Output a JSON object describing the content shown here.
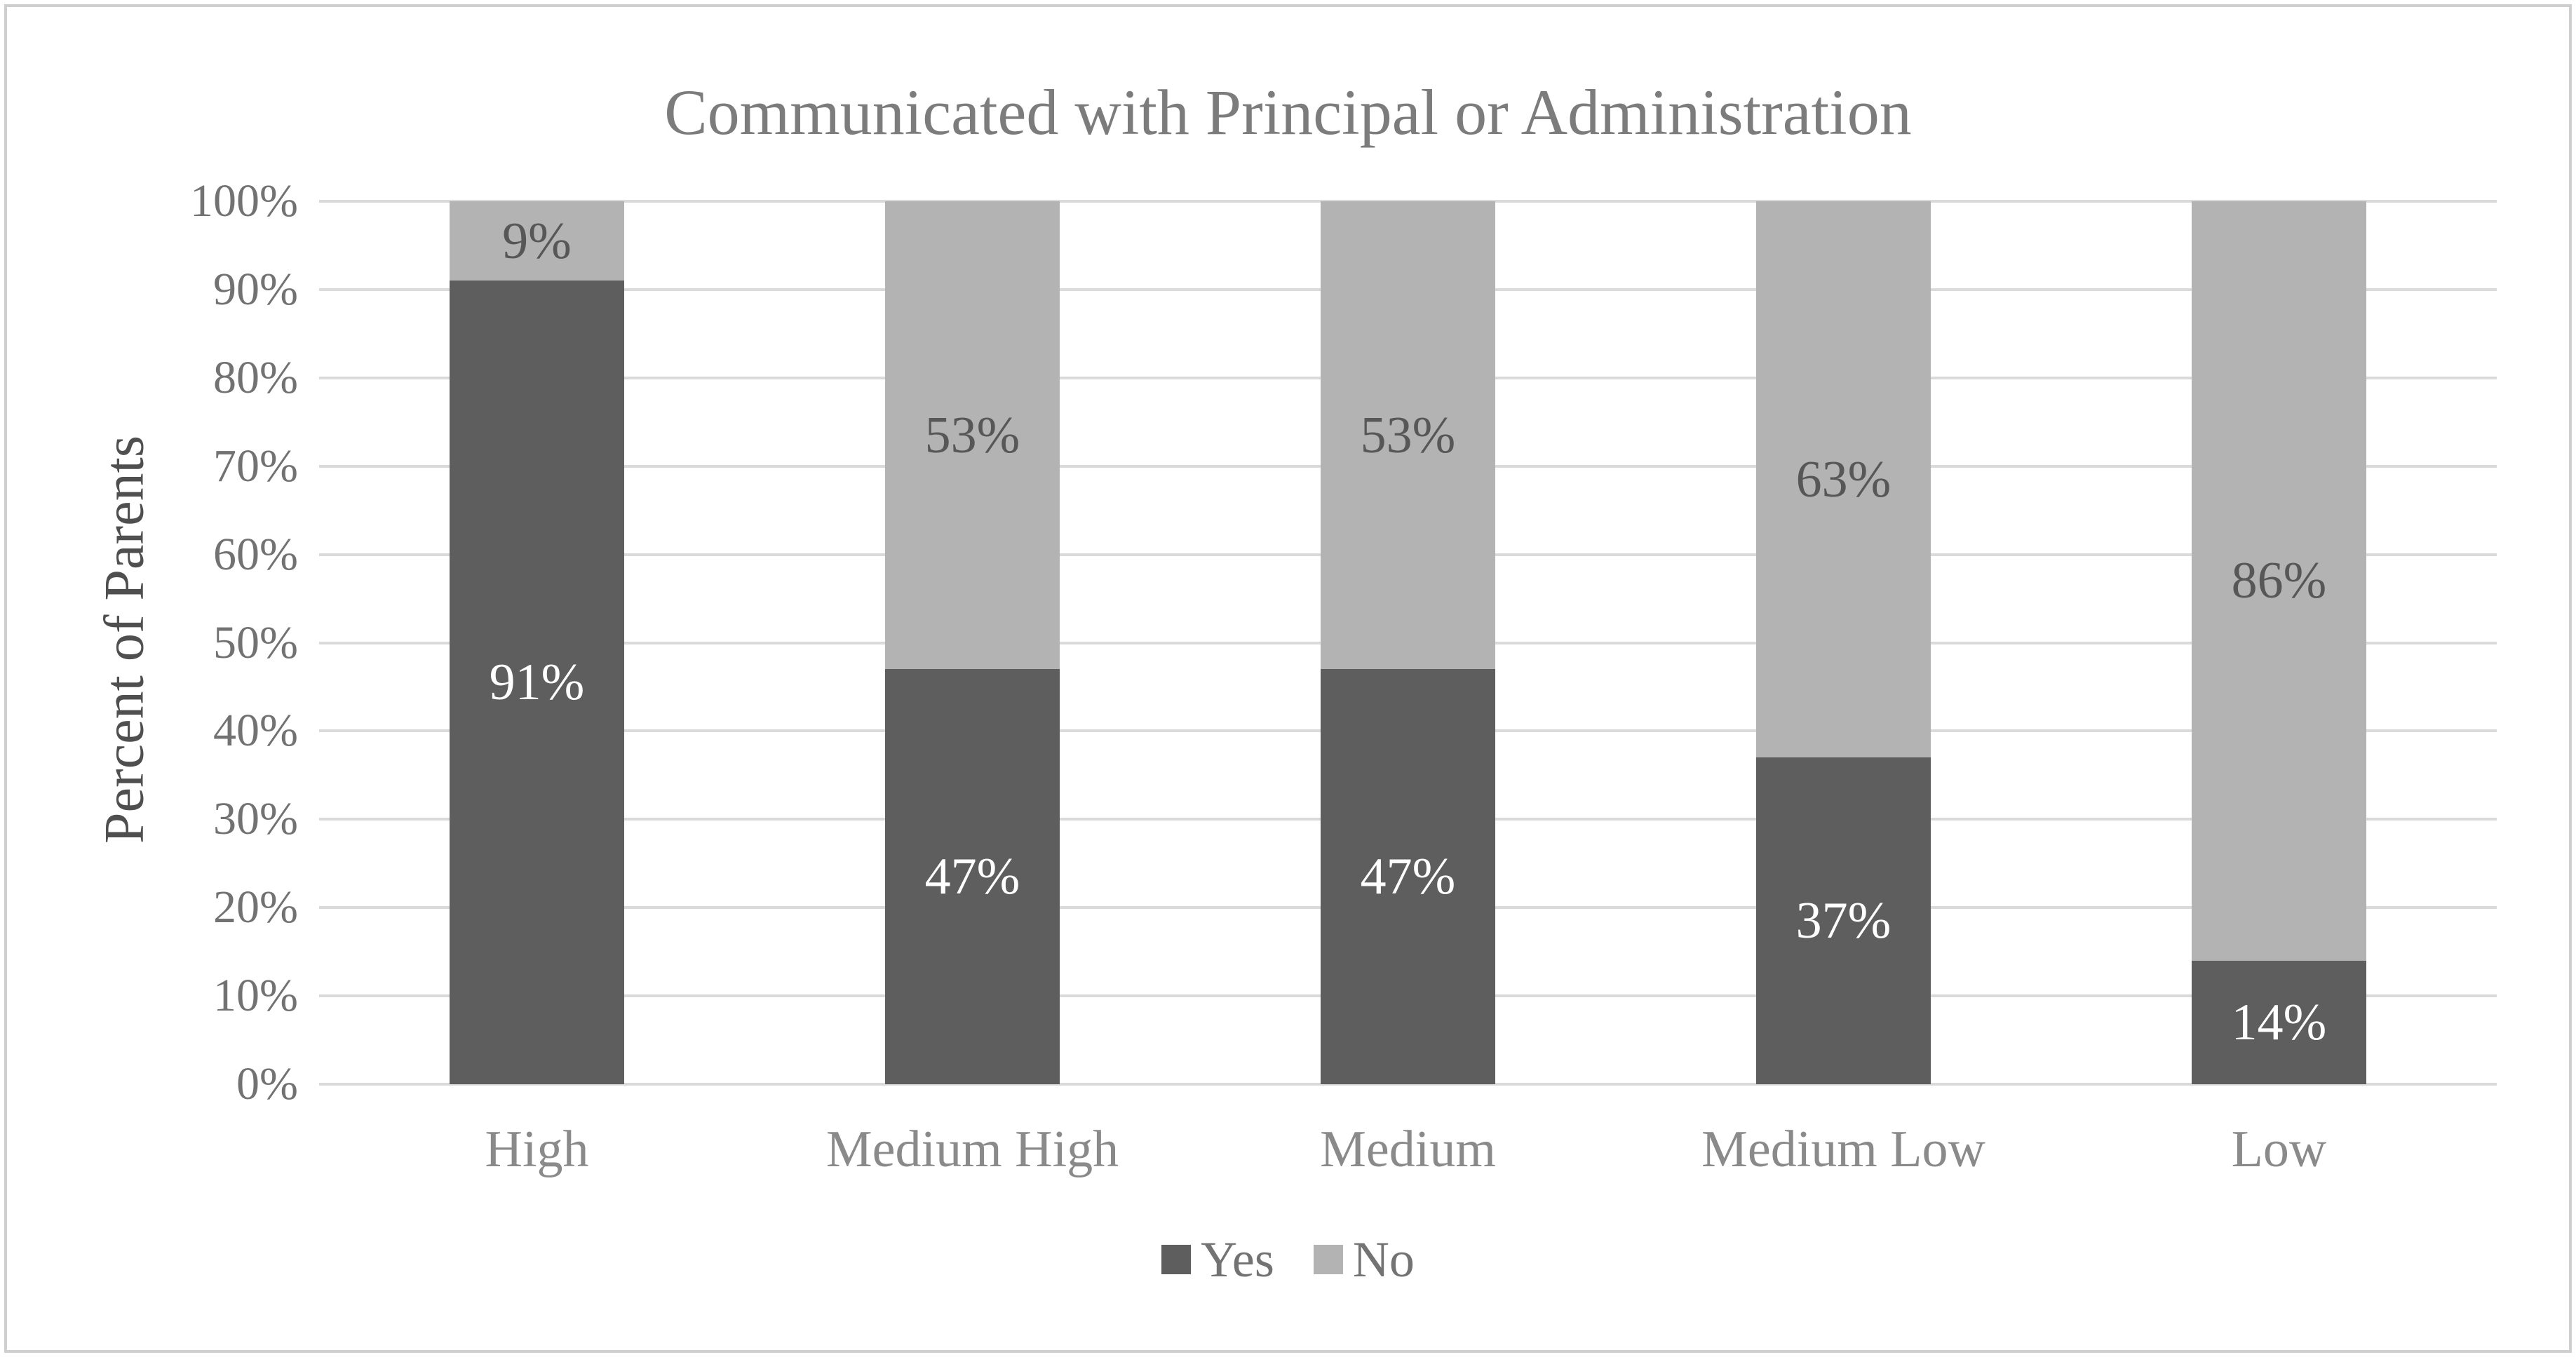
{
  "chart_data": {
    "type": "bar",
    "stacked": true,
    "title": "Communicated with Principal or Administration",
    "ylabel": "Percent of Parents",
    "categories": [
      "High",
      "Medium High",
      "Medium",
      "Medium Low",
      "Low"
    ],
    "series": [
      {
        "name": "Yes",
        "color": "#5e5e5e",
        "label_color": "#ffffff",
        "values": [
          91,
          47,
          47,
          37,
          14
        ],
        "labels": [
          "91%",
          "47%",
          "47%",
          "37%",
          "14%"
        ]
      },
      {
        "name": "No",
        "color": "#b3b3b3",
        "label_color": "#575757",
        "values": [
          9,
          53,
          53,
          63,
          86
        ],
        "labels": [
          "9%",
          "53%",
          "53%",
          "63%",
          "86%"
        ]
      }
    ],
    "y_tick_values": [
      0,
      10,
      20,
      30,
      40,
      50,
      60,
      70,
      80,
      90,
      100
    ],
    "y_tick_labels": [
      "0%",
      "10%",
      "20%",
      "30%",
      "40%",
      "50%",
      "60%",
      "70%",
      "80%",
      "90%",
      "100%"
    ],
    "ylim": [
      0,
      100
    ],
    "grid": true,
    "legend_position": "bottom",
    "colors": {
      "gridline": "#dadada",
      "frame": "#cfcfcf",
      "title_text": "#7c7c7c",
      "tick_text": "#727272",
      "category_text": "#8a8a8a",
      "axis_title_text": "#4f4f4f",
      "legend_text": "#737373",
      "background": "#ffffff"
    }
  }
}
